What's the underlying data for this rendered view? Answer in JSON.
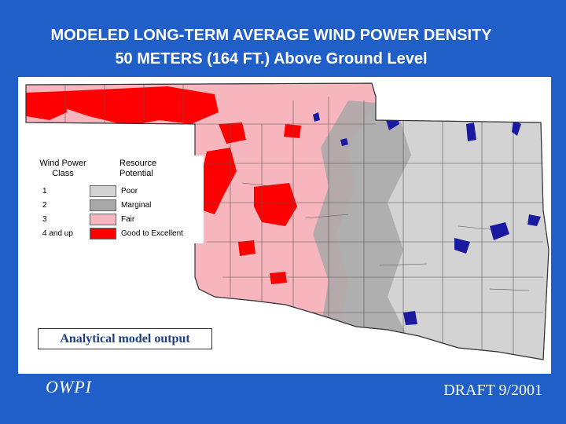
{
  "title": {
    "line1": "MODELED LONG-TERM AVERAGE WIND POWER DENSITY",
    "line2": "50 METERS (164 FT.) Above Ground Level"
  },
  "legend": {
    "class_header": "Wind Power Class",
    "resource_header": "Resource Potential",
    "rows": [
      {
        "class": "1",
        "label": "Poor",
        "color": "#d3d3d3"
      },
      {
        "class": "2",
        "label": "Marginal",
        "color": "#a8a8a8"
      },
      {
        "class": "3",
        "label": "Fair",
        "color": "#f7b6bd"
      },
      {
        "class": "4 and up",
        "label": "Good to Excellent",
        "color": "#ff0000"
      }
    ]
  },
  "caption": "Analytical model output",
  "footer_left": "OWPI",
  "footer_right": "DRAFT 9/2001",
  "colors": {
    "background": "#1f5fc7",
    "fair": "#f7b6bd",
    "poor": "#d3d3d3",
    "marginal": "#a8a8a8",
    "good": "#ff0000",
    "water": "#1a1aa0",
    "county_lines": "#555555"
  }
}
